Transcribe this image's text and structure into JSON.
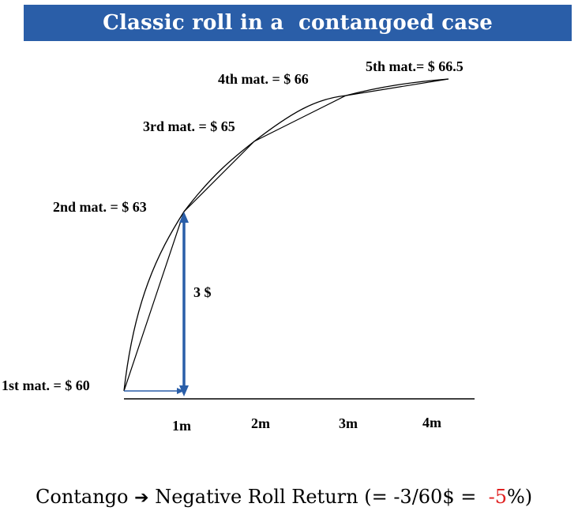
{
  "title": "Classic roll in a  contangoed case",
  "points": [
    {
      "label": "1st mat. = $ 60"
    },
    {
      "label": "2nd mat. = $ 63"
    },
    {
      "label": "3rd mat. = $ 65"
    },
    {
      "label": "4th mat. = $ 66"
    },
    {
      "label": "5th mat.= $ 66.5"
    }
  ],
  "x_ticks": [
    "1m",
    "2m",
    "3m",
    "4m"
  ],
  "difference_label": "3 $",
  "colors": {
    "title_bar": "#2a5ea8",
    "arrow": "#2a5ea8",
    "negative_value": "#e02020"
  },
  "footer": {
    "left": "Contango ",
    "arrow_glyph": "➔",
    "middle": " Negative Roll Return (= -3/60$ =  ",
    "value": "-5",
    "end": "%)"
  }
}
